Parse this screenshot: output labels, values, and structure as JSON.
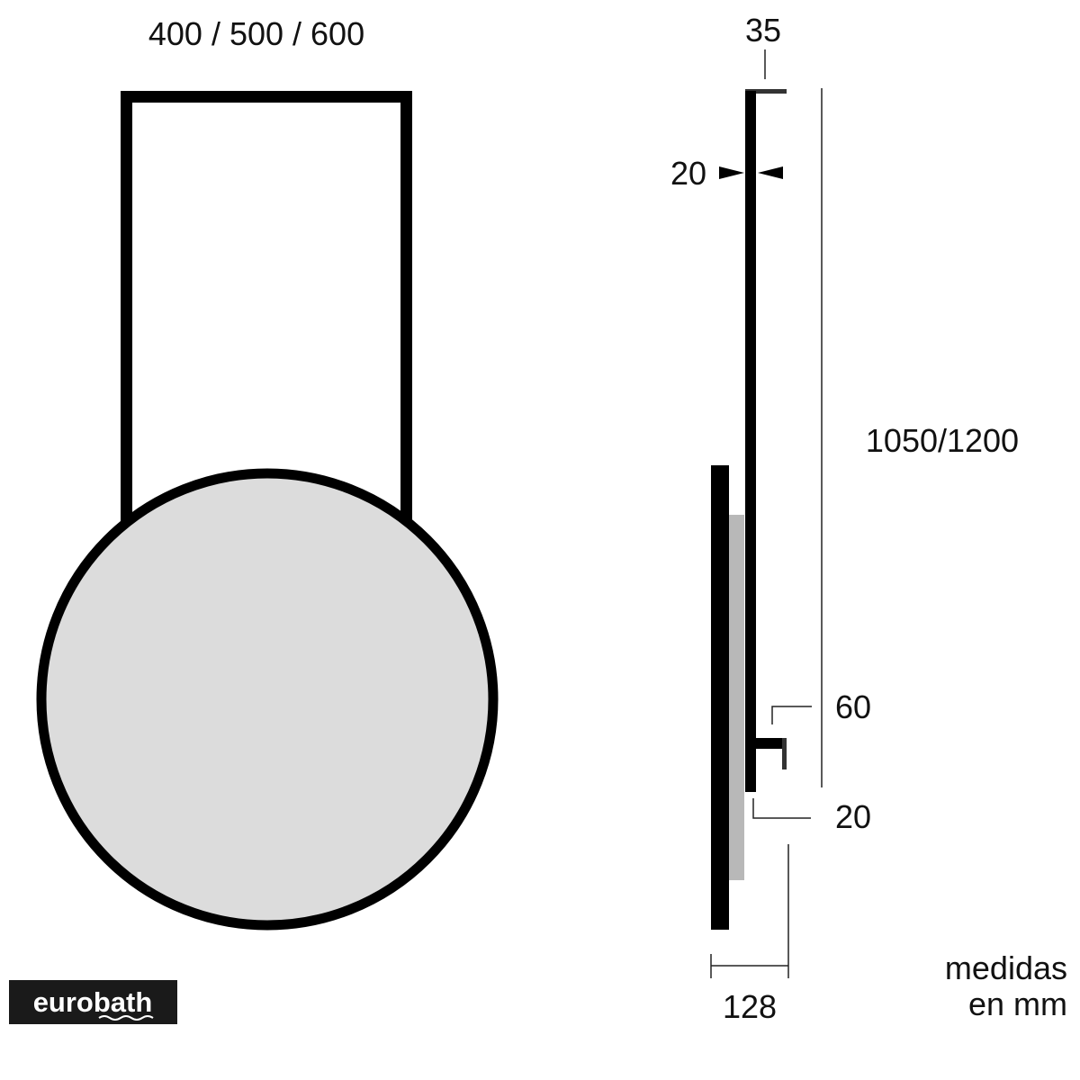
{
  "front_view": {
    "width_label": "400 / 500 / 600",
    "mirror_fill": "#dcdcdc"
  },
  "side_view": {
    "depth_top_label": "35",
    "tube_label": "20",
    "height_label": "1050/1200",
    "bracket_label": "60",
    "bottom_offset_label": "20",
    "total_depth_label": "128",
    "panel_fill": "#b8b8b8"
  },
  "units_note": {
    "line1": "medidas",
    "line2": "en mm"
  },
  "logo": {
    "text": "eurobath"
  }
}
